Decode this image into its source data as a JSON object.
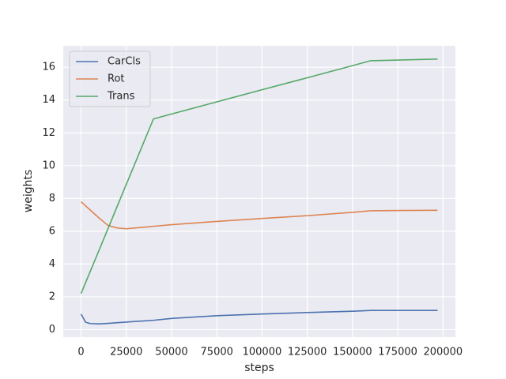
{
  "chart_data": {
    "type": "line",
    "xlabel": "steps",
    "ylabel": "weights",
    "x": [
      0,
      2500,
      5000,
      10000,
      15000,
      20000,
      25000,
      30000,
      35000,
      40000,
      50000,
      75000,
      100000,
      125000,
      150000,
      160000,
      197000
    ],
    "series": [
      {
        "name": "CarCls",
        "color": "#4c72b0",
        "values": [
          0.95,
          0.45,
          0.37,
          0.35,
          0.38,
          0.42,
          0.46,
          0.5,
          0.53,
          0.57,
          0.68,
          0.85,
          0.95,
          1.04,
          1.12,
          1.17,
          1.17
        ]
      },
      {
        "name": "Rot",
        "color": "#dd8452",
        "values": [
          7.8,
          7.55,
          7.3,
          6.8,
          6.35,
          6.2,
          6.15,
          6.2,
          6.25,
          6.3,
          6.4,
          6.6,
          6.78,
          6.95,
          7.15,
          7.25,
          7.28
        ]
      },
      {
        "name": "Trans",
        "color": "#55a868",
        "values": [
          2.2,
          2.87,
          3.53,
          4.86,
          6.19,
          7.53,
          8.86,
          10.19,
          11.52,
          12.85,
          13.15,
          13.89,
          14.63,
          15.36,
          16.1,
          16.4,
          16.5
        ]
      }
    ],
    "xlim": [
      -9850,
      206850
    ],
    "xticks": [
      0,
      25000,
      50000,
      75000,
      100000,
      125000,
      150000,
      175000,
      200000
    ],
    "ylim": [
      -0.46,
      17.31
    ],
    "yticks": [
      0,
      2,
      4,
      6,
      8,
      10,
      12,
      14,
      16
    ],
    "grid": true,
    "legend": "upper left"
  }
}
